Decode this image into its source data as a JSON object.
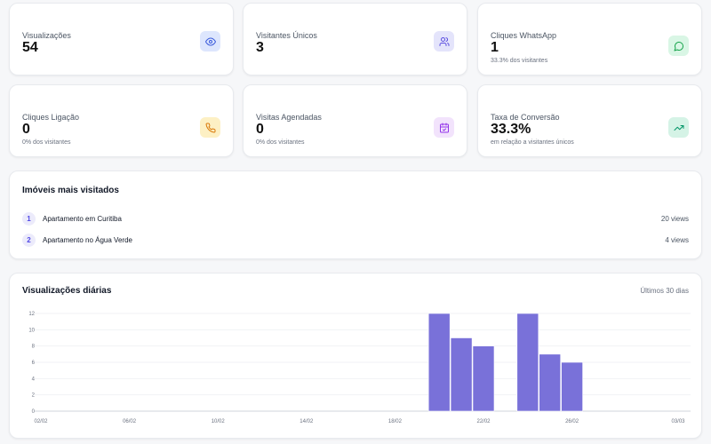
{
  "stats": [
    {
      "label": "Visualizações",
      "value": "54",
      "sub": "",
      "icon": "eye-icon",
      "bg": "#dde6fd",
      "color": "#3b5bdb"
    },
    {
      "label": "Visitantes Únicos",
      "value": "3",
      "sub": "",
      "icon": "users-icon",
      "bg": "#e4e4fb",
      "color": "#5b4ee0"
    },
    {
      "label": "Cliques WhatsApp",
      "value": "1",
      "sub": "33.3% dos visitantes",
      "icon": "message-circle-icon",
      "bg": "#d9f6e5",
      "color": "#16a34a"
    },
    {
      "label": "Cliques Ligação",
      "value": "0",
      "sub": "0% dos visitantes",
      "icon": "phone-icon",
      "bg": "#fdf0c4",
      "color": "#d97706"
    },
    {
      "label": "Visitas Agendadas",
      "value": "0",
      "sub": "0% dos visitantes",
      "icon": "calendar-check-icon",
      "bg": "#f2e3fc",
      "color": "#9333ea"
    },
    {
      "label": "Taxa de Conversão",
      "value": "33.3%",
      "sub": "em relação a visitantes únicos",
      "icon": "trending-up-icon",
      "bg": "#d5f3e6",
      "color": "#059669"
    }
  ],
  "top": {
    "title": "Imóveis mais visitados",
    "items": [
      {
        "rank": "1",
        "name": "Apartamento em Curitiba",
        "views": "20 views"
      },
      {
        "rank": "2",
        "name": "Apartamento no Água Verde",
        "views": "4 views"
      }
    ]
  },
  "daily": {
    "title": "Visualizações diárias",
    "period": "Últimos 30 dias"
  },
  "chart_data": {
    "type": "bar",
    "color": "#7971d9",
    "categories": [
      "02/02",
      "03/02",
      "04/02",
      "05/02",
      "06/02",
      "07/02",
      "08/02",
      "09/02",
      "10/02",
      "11/02",
      "12/02",
      "13/02",
      "14/02",
      "15/02",
      "16/02",
      "17/02",
      "18/02",
      "19/02",
      "20/02",
      "21/02",
      "22/02",
      "23/02",
      "24/02",
      "25/02",
      "26/02",
      "27/02",
      "28/02",
      "01/03",
      "02/03",
      "03/03"
    ],
    "values": [
      0,
      0,
      0,
      0,
      0,
      0,
      0,
      0,
      0,
      0,
      0,
      0,
      0,
      0,
      0,
      0,
      0,
      0,
      12,
      9,
      8,
      0,
      12,
      7,
      6,
      0,
      0,
      0,
      0,
      0
    ],
    "xticks": [
      "02/02",
      "06/02",
      "10/02",
      "14/02",
      "18/02",
      "22/02",
      "26/02",
      "03/03"
    ],
    "yticks": [
      "0",
      "2",
      "4",
      "6",
      "8",
      "10",
      "12"
    ],
    "ylim": [
      0,
      12
    ],
    "grid": true
  }
}
